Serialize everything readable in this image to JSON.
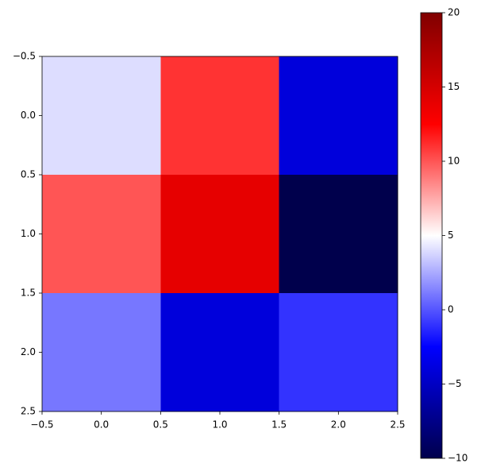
{
  "chart_data": {
    "type": "heatmap",
    "z": [
      [
        4,
        11,
        -4
      ],
      [
        10,
        14,
        -10
      ],
      [
        1,
        -4,
        -1
      ]
    ],
    "colormap": "seismic",
    "clim": [
      -10,
      20
    ],
    "xlim": [
      -0.5,
      2.5
    ],
    "ylim": [
      2.5,
      -0.5
    ],
    "xticks": [
      {
        "value": -0.5,
        "label": "−0.5"
      },
      {
        "value": 0,
        "label": "0.0"
      },
      0.5,
      {
        "value": 1,
        "label": "1.0"
      },
      1.5,
      {
        "value": 2,
        "label": "2.0"
      },
      2.5
    ],
    "yticks": [
      {
        "value": -0.5,
        "label": "−0.5"
      },
      {
        "value": 0,
        "label": "0.0"
      },
      0.5,
      {
        "value": 1,
        "label": "1.0"
      },
      1.5,
      {
        "value": 2,
        "label": "2.0"
      },
      2.5
    ],
    "colorbar_ticks": [
      {
        "value": -10,
        "label": "−10"
      },
      {
        "value": -5,
        "label": "−5"
      },
      0,
      5,
      10,
      15,
      20
    ]
  }
}
